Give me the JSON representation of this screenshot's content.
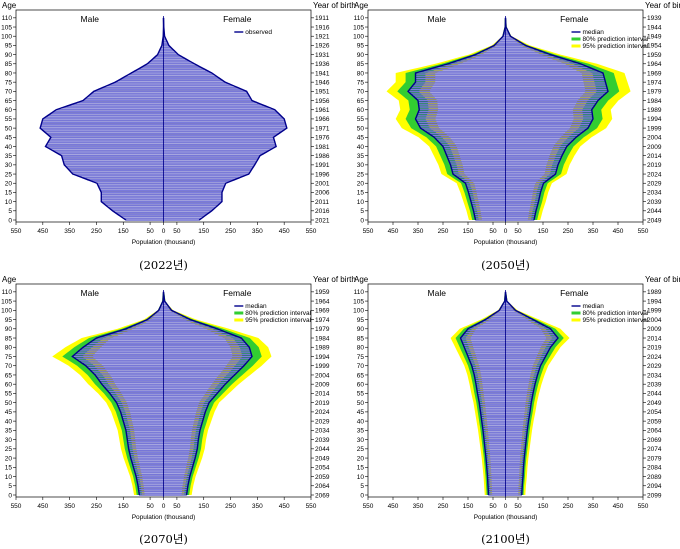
{
  "chart_data": [
    {
      "type": "population-pyramid",
      "caption": "(2022년)",
      "first_birth_year": 1911,
      "legend": [
        "observed"
      ],
      "male_label": "Male",
      "female_label": "Female",
      "age_axis_label": "Age",
      "birth_axis_label": "Year of birth",
      "xlabel": "Population (thousand)",
      "xticks": [
        "550",
        "450",
        "350",
        "250",
        "150",
        "50",
        "0",
        "50",
        "150",
        "250",
        "350",
        "450",
        "550"
      ],
      "age_ticks": [
        "0",
        "5",
        "10",
        "15",
        "20",
        "25",
        "30",
        "35",
        "40",
        "45",
        "50",
        "55",
        "60",
        "65",
        "70",
        "75",
        "80",
        "85",
        "90",
        "95",
        "100",
        "105",
        "110"
      ],
      "birth_ticks": [
        "2021",
        "2016",
        "2011",
        "2006",
        "2001",
        "1996",
        "1991",
        "1986",
        "1981",
        "1976",
        "1971",
        "1966",
        "1961",
        "1956",
        "1951",
        "1946",
        "1941",
        "1936",
        "1931",
        "1926",
        "1921",
        "1916",
        "1911"
      ],
      "ages": [
        0,
        5,
        10,
        15,
        20,
        25,
        30,
        35,
        40,
        45,
        50,
        55,
        60,
        65,
        70,
        75,
        80,
        85,
        90,
        95,
        100,
        105,
        110
      ],
      "male": [
        140,
        190,
        232,
        232,
        248,
        338,
        370,
        380,
        440,
        420,
        460,
        450,
        400,
        300,
        260,
        180,
        120,
        60,
        22,
        6,
        1,
        0,
        0
      ],
      "female": [
        133,
        180,
        218,
        218,
        232,
        318,
        340,
        360,
        420,
        410,
        460,
        450,
        415,
        330,
        310,
        230,
        180,
        115,
        55,
        20,
        4,
        1,
        0
      ],
      "bands": false
    },
    {
      "type": "population-pyramid",
      "caption": "(2050년)",
      "first_birth_year": 1939,
      "legend": [
        "median",
        "80% prediction interval",
        "95% prediction interval"
      ],
      "male_label": "Male",
      "female_label": "Female",
      "age_axis_label": "Age",
      "birth_axis_label": "Year of birth",
      "xlabel": "Population (thousand)",
      "xticks": [
        "550",
        "450",
        "350",
        "250",
        "150",
        "50",
        "0",
        "50",
        "150",
        "250",
        "350",
        "450",
        "550"
      ],
      "age_ticks": [
        "0",
        "5",
        "10",
        "15",
        "20",
        "25",
        "30",
        "35",
        "40",
        "45",
        "50",
        "55",
        "60",
        "65",
        "70",
        "75",
        "80",
        "85",
        "90",
        "95",
        "100",
        "105",
        "110"
      ],
      "birth_ticks": [
        "2049",
        "2044",
        "2039",
        "2034",
        "2029",
        "2024",
        "2019",
        "2014",
        "2009",
        "2004",
        "1999",
        "1994",
        "1989",
        "1984",
        "1979",
        "1974",
        "1969",
        "1964",
        "1959",
        "1954",
        "1949",
        "1944",
        "1939"
      ],
      "ages": [
        0,
        5,
        10,
        15,
        20,
        25,
        30,
        35,
        40,
        45,
        50,
        55,
        60,
        65,
        70,
        75,
        80,
        85,
        90,
        95,
        100,
        105,
        110
      ],
      "male": [
        120,
        128,
        138,
        148,
        160,
        210,
        220,
        235,
        250,
        285,
        340,
        360,
        345,
        350,
        390,
        360,
        360,
        230,
        120,
        45,
        10,
        1,
        0
      ],
      "female": [
        114,
        122,
        132,
        140,
        152,
        200,
        210,
        226,
        245,
        282,
        330,
        350,
        345,
        370,
        410,
        400,
        390,
        300,
        180,
        80,
        20,
        2,
        0
      ],
      "bands": true
    },
    {
      "type": "population-pyramid",
      "caption": "(2070년)",
      "first_birth_year": 1959,
      "legend": [
        "median",
        "80% prediction interval",
        "95% prediction interval"
      ],
      "male_label": "Male",
      "female_label": "Female",
      "age_axis_label": "Age",
      "birth_axis_label": "Year of birth",
      "xlabel": "Population (thousand)",
      "xticks": [
        "550",
        "450",
        "350",
        "250",
        "150",
        "50",
        "0",
        "50",
        "150",
        "250",
        "350",
        "450",
        "550"
      ],
      "age_ticks": [
        "0",
        "5",
        "10",
        "15",
        "20",
        "25",
        "30",
        "35",
        "40",
        "45",
        "50",
        "55",
        "60",
        "65",
        "70",
        "75",
        "80",
        "85",
        "90",
        "95",
        "100",
        "105",
        "110"
      ],
      "birth_ticks": [
        "2069",
        "2064",
        "2059",
        "2054",
        "2049",
        "2044",
        "2039",
        "2034",
        "2029",
        "2024",
        "2019",
        "2014",
        "2009",
        "2004",
        "1999",
        "1994",
        "1989",
        "1984",
        "1979",
        "1974",
        "1969",
        "1964",
        "1959"
      ],
      "ages": [
        0,
        5,
        10,
        15,
        20,
        25,
        30,
        35,
        40,
        45,
        50,
        55,
        60,
        65,
        70,
        75,
        80,
        85,
        90,
        95,
        100,
        105,
        110
      ],
      "male": [
        90,
        95,
        102,
        112,
        122,
        130,
        135,
        140,
        150,
        160,
        175,
        200,
        230,
        255,
        290,
        340,
        300,
        250,
        140,
        60,
        18,
        2,
        0
      ],
      "female": [
        86,
        91,
        98,
        108,
        118,
        126,
        130,
        136,
        146,
        156,
        170,
        200,
        230,
        265,
        300,
        330,
        320,
        290,
        200,
        100,
        30,
        4,
        0
      ],
      "bands": true
    },
    {
      "type": "population-pyramid",
      "caption": "(2100년)",
      "first_birth_year": 1989,
      "legend": [
        "median",
        "80% prediction interval",
        "95% prediction interval"
      ],
      "male_label": "Male",
      "female_label": "Female",
      "age_axis_label": "Age",
      "birth_axis_label": "Year of birth",
      "xlabel": "Population (thousand)",
      "xticks": [
        "550",
        "450",
        "350",
        "250",
        "150",
        "50",
        "0",
        "50",
        "150",
        "250",
        "350",
        "450",
        "550"
      ],
      "age_ticks": [
        "0",
        "5",
        "10",
        "15",
        "20",
        "25",
        "30",
        "35",
        "40",
        "45",
        "50",
        "55",
        "60",
        "65",
        "70",
        "75",
        "80",
        "85",
        "90",
        "95",
        "100",
        "105",
        "110"
      ],
      "birth_ticks": [
        "2099",
        "2094",
        "2089",
        "2084",
        "2079",
        "2074",
        "2069",
        "2064",
        "2059",
        "2054",
        "2049",
        "2044",
        "2039",
        "2034",
        "2029",
        "2024",
        "2019",
        "2014",
        "2009",
        "2004",
        "1999",
        "1994",
        "1989"
      ],
      "ages": [
        0,
        5,
        10,
        15,
        20,
        25,
        30,
        35,
        40,
        45,
        50,
        55,
        60,
        65,
        70,
        75,
        80,
        85,
        90,
        95,
        100,
        105,
        110
      ],
      "male": [
        68,
        70,
        72,
        75,
        78,
        82,
        86,
        90,
        95,
        100,
        105,
        112,
        118,
        125,
        135,
        150,
        165,
        180,
        150,
        80,
        25,
        3,
        0
      ],
      "female": [
        65,
        67,
        70,
        72,
        75,
        79,
        83,
        87,
        92,
        98,
        103,
        110,
        118,
        128,
        140,
        160,
        180,
        210,
        180,
        110,
        40,
        5,
        0
      ],
      "bands": true
    }
  ]
}
